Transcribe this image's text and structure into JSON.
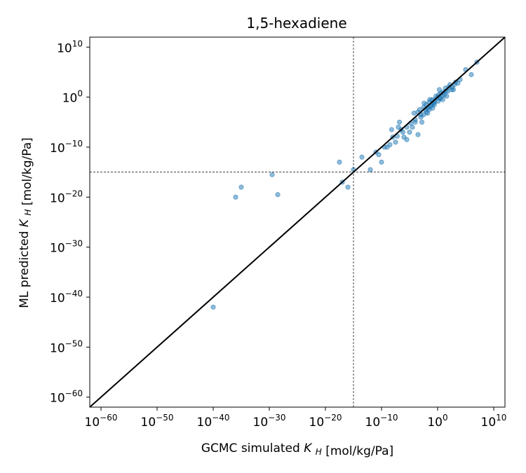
{
  "chart_data": {
    "type": "scatter",
    "title": "1,5-hexadiene",
    "xlabel": "GCMC simulated",
    "ylabel": "ML predicted",
    "axis_quantity": "K",
    "axis_quantity_subscript": "H",
    "axis_unit": "[mol/kg/Pa]",
    "x_scale": "log",
    "y_scale": "log",
    "xlim_log10": [
      -62,
      12
    ],
    "ylim_log10": [
      -62,
      12
    ],
    "x_ticks_log10": [
      -60,
      -50,
      -40,
      -30,
      -20,
      -10,
      0,
      10
    ],
    "y_ticks_log10": [
      -60,
      -50,
      -40,
      -30,
      -20,
      -10,
      0,
      10
    ],
    "tick_base": "10",
    "reference_line": "y = x",
    "threshold_log10": -15,
    "grid": false,
    "marker_color": "#1f77b4",
    "line_color": "#000000",
    "points_log10": [
      [
        -40,
        -42
      ],
      [
        -36,
        -20
      ],
      [
        -35,
        -18
      ],
      [
        -29.5,
        -15.5
      ],
      [
        -28.5,
        -19.5
      ],
      [
        -17.5,
        -13
      ],
      [
        -17,
        -17
      ],
      [
        -16,
        -18
      ],
      [
        -15,
        -14.5
      ],
      [
        -13.5,
        -12
      ],
      [
        -12,
        -14.5
      ],
      [
        -11,
        -11
      ],
      [
        -10.5,
        -11.5
      ],
      [
        -10,
        -13
      ],
      [
        -9.5,
        -10
      ],
      [
        -9,
        -10
      ],
      [
        -8.5,
        -9.5
      ],
      [
        -8,
        -8
      ],
      [
        -7.5,
        -9
      ],
      [
        -7,
        -6
      ],
      [
        -6.5,
        -6.5
      ],
      [
        -6,
        -8
      ],
      [
        -5.5,
        -8.5
      ],
      [
        -5,
        -7
      ],
      [
        -4.5,
        -6
      ],
      [
        -4,
        -5
      ],
      [
        -3.5,
        -7.5
      ],
      [
        -3,
        -4
      ],
      [
        -2.5,
        -2
      ],
      [
        -2,
        -3
      ],
      [
        -1.5,
        -2.5
      ],
      [
        -1,
        -1.5
      ],
      [
        -0.5,
        -0.5
      ],
      [
        0,
        0
      ],
      [
        0.5,
        -0.2
      ],
      [
        1,
        1
      ],
      [
        1.5,
        1.2
      ],
      [
        2,
        2
      ],
      [
        2.5,
        1.5
      ],
      [
        3,
        2.5
      ],
      [
        4,
        3.5
      ],
      [
        5,
        5.5
      ],
      [
        6,
        4.5
      ],
      [
        7,
        7
      ],
      [
        -4,
        -4.5
      ],
      [
        -3.5,
        -3
      ],
      [
        -3,
        -3.5
      ],
      [
        -2.5,
        -3.5
      ],
      [
        -2,
        -1.5
      ],
      [
        -1.8,
        -2.2
      ],
      [
        -1.5,
        -1
      ],
      [
        -1.2,
        -1.8
      ],
      [
        -1,
        -0.5
      ],
      [
        -0.8,
        -1.2
      ],
      [
        -0.5,
        -1
      ],
      [
        -0.3,
        0.2
      ],
      [
        0.2,
        0.5
      ],
      [
        0.4,
        -0.3
      ],
      [
        0.6,
        0.8
      ],
      [
        0.8,
        0.3
      ],
      [
        1.2,
        0.5
      ],
      [
        1.4,
        1.8
      ],
      [
        1.8,
        1.2
      ],
      [
        2.2,
        2.5
      ],
      [
        2.6,
        2
      ],
      [
        3.2,
        3
      ],
      [
        3.6,
        2.8
      ],
      [
        -2.2,
        -2.5
      ],
      [
        -1.6,
        -2
      ],
      [
        -0.6,
        -1.5
      ],
      [
        0.1,
        -0.8
      ],
      [
        0.9,
        -0.5
      ],
      [
        -5.5,
        -6
      ],
      [
        -4.8,
        -5.2
      ],
      [
        -6.2,
        -7
      ],
      [
        -7.2,
        -7.8
      ],
      [
        -2.8,
        -5
      ],
      [
        -1.8,
        -3.2
      ],
      [
        -0.9,
        -2.2
      ],
      [
        0.3,
        1.5
      ],
      [
        -3.2,
        -2.5
      ],
      [
        -2.4,
        -1.2
      ],
      [
        -1.4,
        -0.5
      ],
      [
        1.6,
        0.2
      ],
      [
        2.8,
        1.5
      ],
      [
        -4.2,
        -3.2
      ],
      [
        -6.8,
        -5
      ],
      [
        -8.2,
        -6.5
      ]
    ]
  }
}
